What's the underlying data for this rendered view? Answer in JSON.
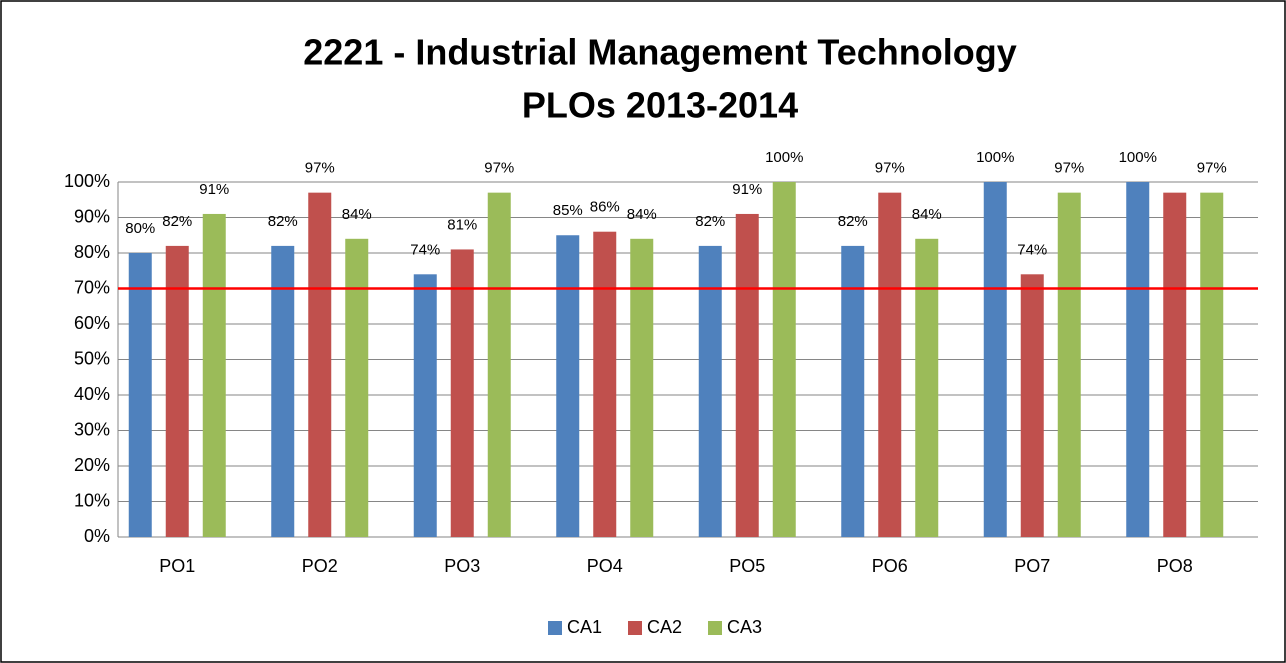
{
  "chart_data": {
    "type": "bar",
    "title": [
      "2221 - Industrial Management Technology",
      "PLOs 2013-2014"
    ],
    "categories": [
      "PO1",
      "PO2",
      "PO3",
      "PO4",
      "PO5",
      "PO6",
      "PO7",
      "PO8"
    ],
    "series": [
      {
        "name": "CA1",
        "color": "#4f81bd",
        "values": [
          80,
          82,
          74,
          85,
          82,
          82,
          100,
          100
        ],
        "value_labels": [
          "80%",
          "82%",
          "74%",
          "85%",
          "82%",
          "82%",
          "100%",
          "100%"
        ]
      },
      {
        "name": "CA2",
        "color": "#c0504d",
        "values": [
          82,
          97,
          81,
          86,
          91,
          97,
          74,
          97
        ],
        "value_labels": [
          "82%",
          "97%",
          "81%",
          "86%",
          "91%",
          "97%",
          "74%",
          null
        ]
      },
      {
        "name": "CA3",
        "color": "#9bbb59",
        "values": [
          91,
          84,
          97,
          84,
          100,
          84,
          97,
          97
        ],
        "value_labels": [
          "91%",
          "84%",
          "97%",
          "84%",
          "100%",
          "84%",
          "97%",
          "97%"
        ]
      }
    ],
    "ylim": [
      0,
      100
    ],
    "yticks": [
      {
        "value": 0,
        "label": "0%"
      },
      {
        "value": 10,
        "label": "10%"
      },
      {
        "value": 20,
        "label": "20%"
      },
      {
        "value": 30,
        "label": "30%"
      },
      {
        "value": 40,
        "label": "40%"
      },
      {
        "value": 50,
        "label": "50%"
      },
      {
        "value": 60,
        "label": "60%"
      },
      {
        "value": 70,
        "label": "70%"
      },
      {
        "value": 80,
        "label": "80%"
      },
      {
        "value": 90,
        "label": "90%"
      },
      {
        "value": 100,
        "label": "100%"
      }
    ],
    "grid": true,
    "target_line": {
      "value": 70,
      "color": "#ff0000"
    },
    "legend": "bottom"
  }
}
